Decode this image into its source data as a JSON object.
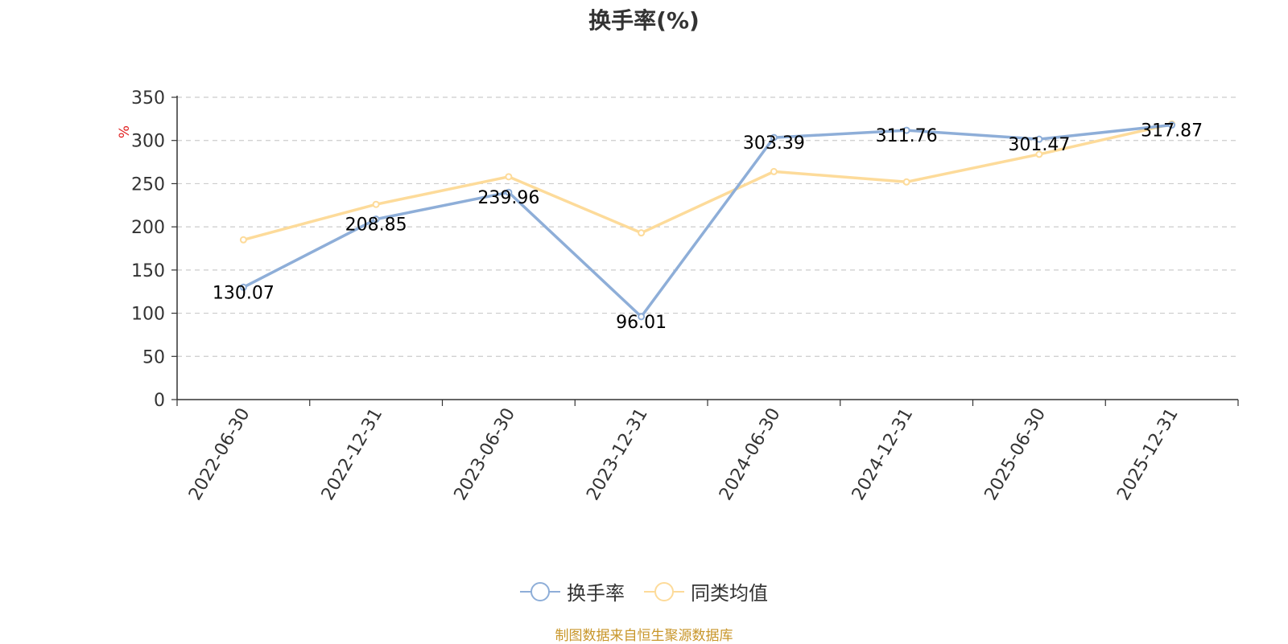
{
  "chart_data": {
    "type": "line",
    "title": "换手率(%)",
    "ylabel": "%",
    "categories": [
      "2022-06-30",
      "2022-12-31",
      "2023-06-30",
      "2023-12-31",
      "2024-06-30",
      "2024-12-31",
      "2025-06-30",
      "2025-12-31"
    ],
    "ylim": [
      0,
      350
    ],
    "yticks": [
      0,
      50,
      100,
      150,
      200,
      250,
      300,
      350
    ],
    "grid": true,
    "legend_position": "bottom",
    "series": [
      {
        "name": "换手率",
        "color": "#8eaed8",
        "values": [
          130.07,
          208.85,
          239.96,
          96.01,
          303.39,
          311.76,
          301.47,
          317.87
        ],
        "labels": [
          "130.07",
          "208.85",
          "239.96",
          "96.01",
          "303.39",
          "311.76",
          "301.47",
          "317.87"
        ]
      },
      {
        "name": "同类均值",
        "color": "#fddb9a",
        "values": [
          185,
          226,
          258,
          193,
          264,
          252,
          284,
          319
        ]
      }
    ]
  },
  "footer": {
    "source": "制图数据来自恒生聚源数据库"
  }
}
